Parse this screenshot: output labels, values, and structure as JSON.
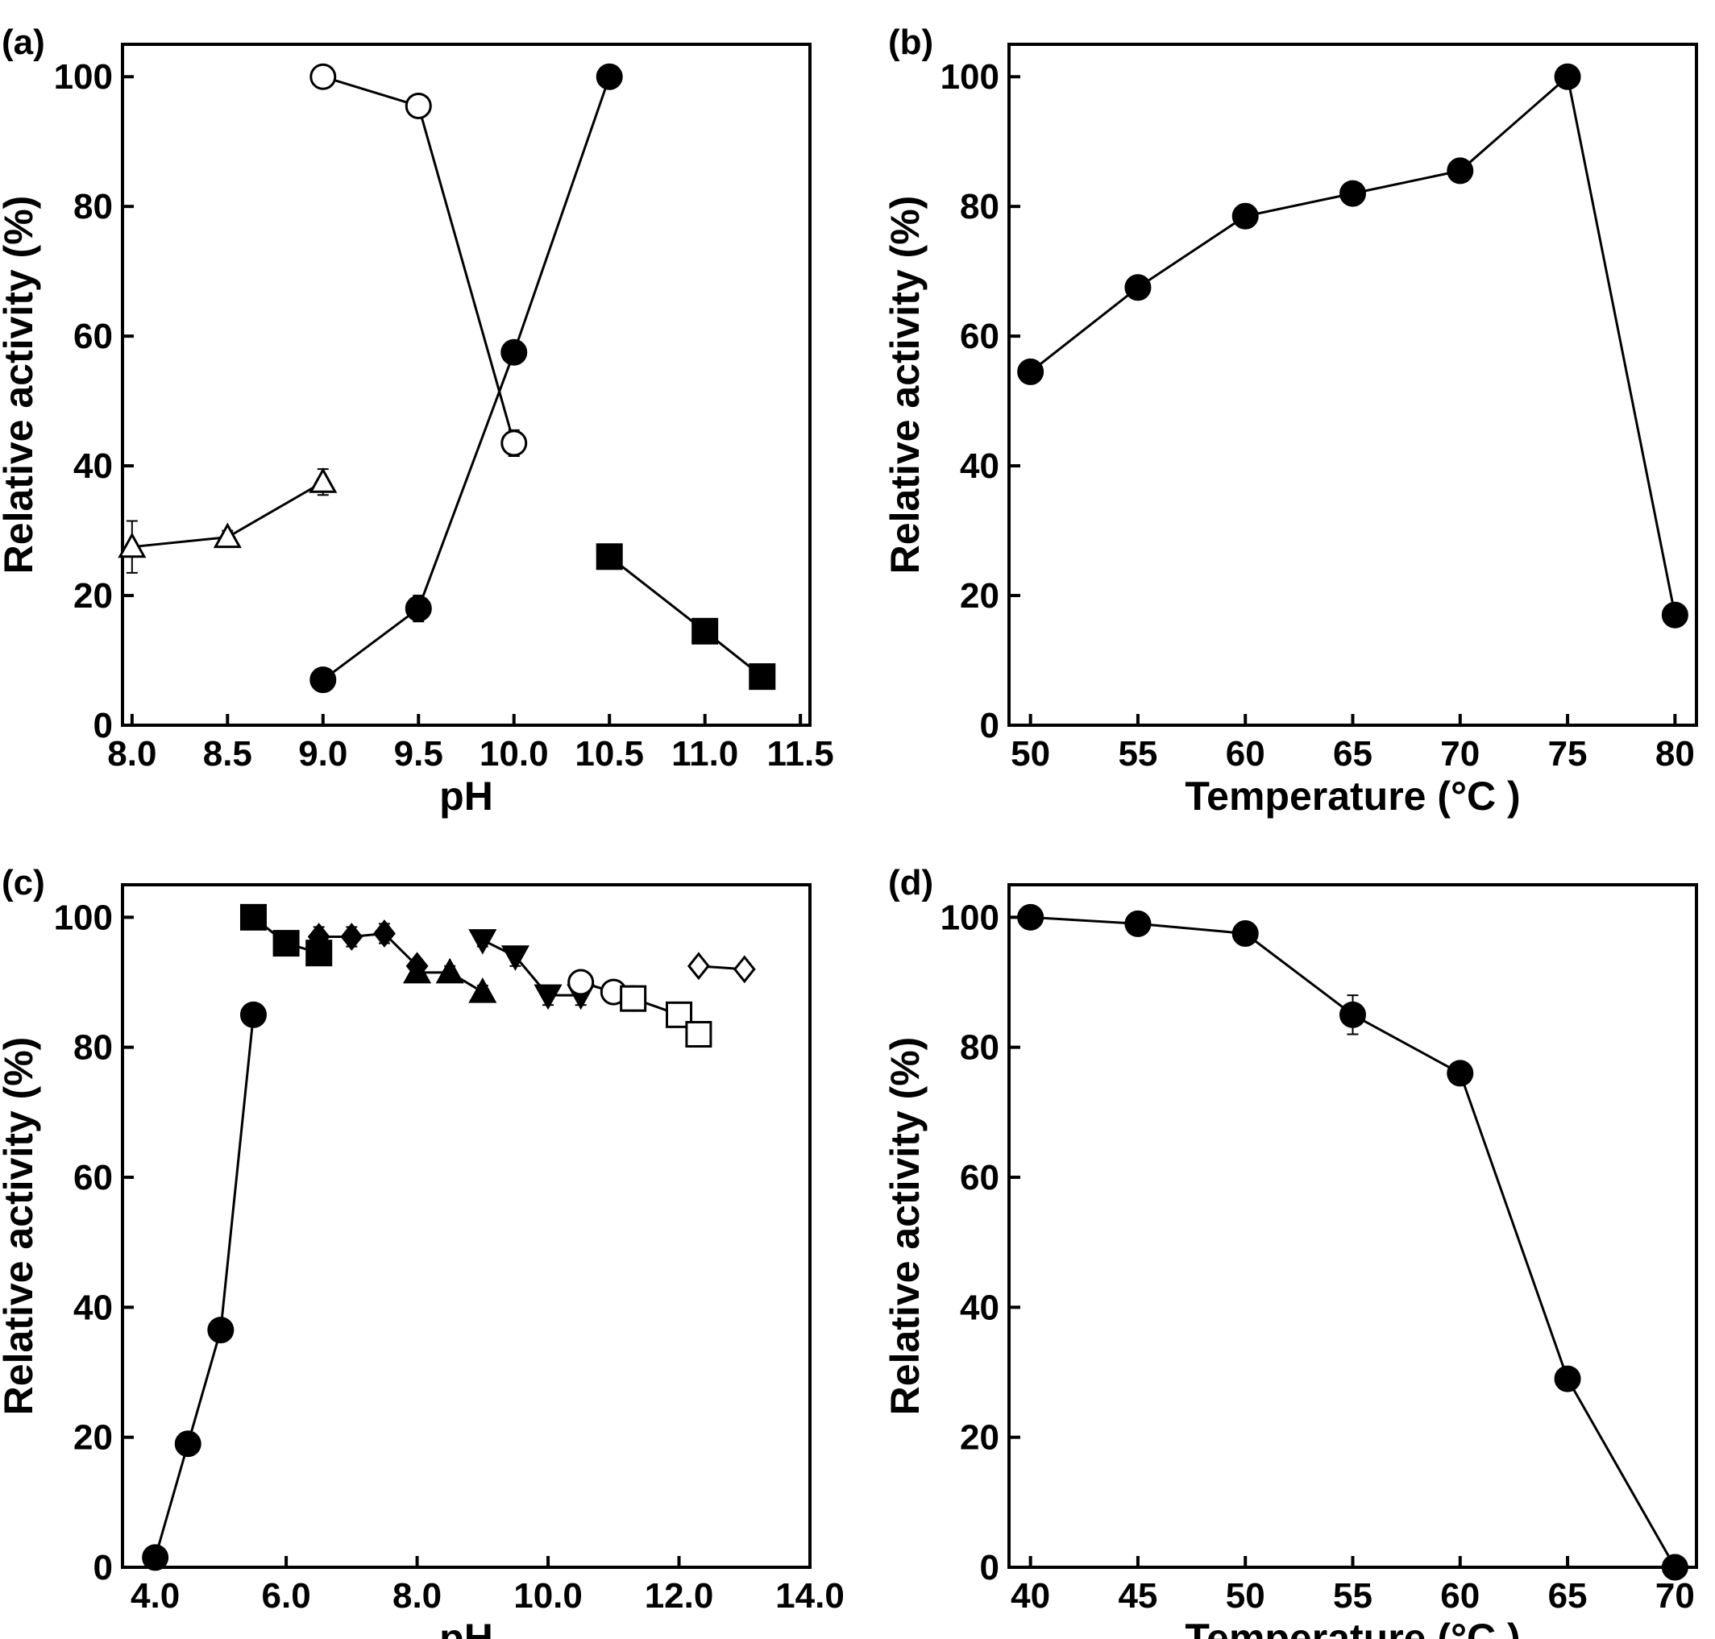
{
  "chart_data": [
    {
      "panel_label": "(a)",
      "type": "line",
      "xlabel": "pH",
      "ylabel": "Relative activity (%)",
      "xlim": [
        7.95,
        11.55
      ],
      "ylim": [
        0,
        105
      ],
      "xticks": [
        8.0,
        8.5,
        9.0,
        9.5,
        10.0,
        10.5,
        11.0,
        11.5
      ],
      "xtick_labels": [
        "8.0",
        "8.5",
        "9.0",
        "9.5",
        "10.0",
        "10.5",
        "11.0",
        "11.5"
      ],
      "yticks": [
        0,
        20,
        40,
        60,
        80,
        100
      ],
      "ytick_labels": [
        "0",
        "20",
        "40",
        "60",
        "80",
        "100"
      ],
      "series": [
        {
          "marker": "triangle-open",
          "x": [
            8.0,
            8.5,
            9.0
          ],
          "y": [
            27.5,
            29,
            37.5
          ],
          "err": [
            4,
            1,
            2
          ]
        },
        {
          "marker": "circle-open",
          "x": [
            9.0,
            9.5,
            10.0
          ],
          "y": [
            100,
            95.5,
            43.5
          ],
          "err": [
            0,
            0,
            2
          ]
        },
        {
          "marker": "circle-filled",
          "x": [
            9.0,
            9.5,
            10.0,
            10.5
          ],
          "y": [
            7,
            18,
            57.5,
            100
          ],
          "err": [
            0,
            2,
            0,
            0
          ]
        },
        {
          "marker": "square-filled",
          "x": [
            10.5,
            11.0,
            11.3
          ],
          "y": [
            26,
            14.5,
            7.5
          ],
          "err": [
            0,
            0,
            0
          ]
        }
      ]
    },
    {
      "panel_label": "(b)",
      "type": "line",
      "xlabel": "Temperature (°C )",
      "ylabel": "Relative activity (%)",
      "xlim": [
        49,
        81
      ],
      "ylim": [
        0,
        105
      ],
      "xticks": [
        50,
        55,
        60,
        65,
        70,
        75,
        80
      ],
      "xtick_labels": [
        "50",
        "55",
        "60",
        "65",
        "70",
        "75",
        "80"
      ],
      "yticks": [
        0,
        20,
        40,
        60,
        80,
        100
      ],
      "ytick_labels": [
        "0",
        "20",
        "40",
        "60",
        "80",
        "100"
      ],
      "series": [
        {
          "marker": "circle-filled",
          "x": [
            50,
            55,
            60,
            65,
            70,
            75,
            80
          ],
          "y": [
            54.5,
            67.5,
            78.5,
            82,
            85.5,
            100,
            17
          ],
          "err": [
            0,
            0,
            0,
            0,
            0,
            0,
            0
          ]
        }
      ]
    },
    {
      "panel_label": "(c)",
      "type": "line",
      "xlabel": "pH",
      "ylabel": "Relative activity (%)",
      "xlim": [
        3.5,
        14.0
      ],
      "ylim": [
        0,
        105
      ],
      "xticks": [
        4.0,
        6.0,
        8.0,
        10.0,
        12.0,
        14.0
      ],
      "xtick_labels": [
        "4.0",
        "6.0",
        "8.0",
        "10.0",
        "12.0",
        "14.0"
      ],
      "yticks": [
        0,
        20,
        40,
        60,
        80,
        100
      ],
      "ytick_labels": [
        "0",
        "20",
        "40",
        "60",
        "80",
        "100"
      ],
      "series": [
        {
          "marker": "circle-filled",
          "x": [
            4.0,
            4.5,
            5.0,
            5.5
          ],
          "y": [
            1.5,
            19,
            36.5,
            85
          ],
          "err": [
            0,
            0,
            0,
            1
          ]
        },
        {
          "marker": "square-filled",
          "x": [
            5.5,
            6.0,
            6.5
          ],
          "y": [
            100,
            96,
            94.5
          ],
          "err": [
            1.5,
            1,
            1.5
          ]
        },
        {
          "marker": "diamond-filled",
          "x": [
            6.5,
            7.0,
            7.5,
            8.0
          ],
          "y": [
            97,
            97,
            97.5,
            92.5
          ],
          "err": [
            1.5,
            1.5,
            1.5,
            1
          ]
        },
        {
          "marker": "triangle-filled",
          "x": [
            8.0,
            8.5,
            9.0
          ],
          "y": [
            91.5,
            91.5,
            88.5
          ],
          "err": [
            1,
            1,
            1
          ]
        },
        {
          "marker": "triangle-down-filled",
          "x": [
            9.0,
            9.5,
            10.0,
            10.5
          ],
          "y": [
            96.5,
            94,
            88,
            88
          ],
          "err": [
            1,
            1.5,
            1.5,
            1.5
          ]
        },
        {
          "marker": "circle-open",
          "x": [
            10.5,
            11.0,
            11.3
          ],
          "y": [
            90,
            88.5,
            87.5
          ],
          "err": [
            1,
            1,
            1.5
          ]
        },
        {
          "marker": "square-open",
          "x": [
            11.3,
            12.0,
            12.3
          ],
          "y": [
            87.5,
            85,
            82
          ],
          "err": [
            1.5,
            0,
            0
          ]
        },
        {
          "marker": "diamond-open",
          "x": [
            12.3,
            13.0
          ],
          "y": [
            92.5,
            92
          ],
          "err": [
            1,
            1
          ]
        }
      ]
    },
    {
      "panel_label": "(d)",
      "type": "line",
      "xlabel": "Temperature (°C )",
      "ylabel": "Relative activity (%)",
      "xlim": [
        39,
        71
      ],
      "ylim": [
        0,
        105
      ],
      "xticks": [
        40,
        45,
        50,
        55,
        60,
        65,
        70
      ],
      "xtick_labels": [
        "40",
        "45",
        "50",
        "55",
        "60",
        "65",
        "70"
      ],
      "yticks": [
        0,
        20,
        40,
        60,
        80,
        100
      ],
      "ytick_labels": [
        "0",
        "20",
        "40",
        "60",
        "80",
        "100"
      ],
      "series": [
        {
          "marker": "circle-filled",
          "x": [
            40,
            45,
            50,
            55,
            60,
            65,
            70
          ],
          "y": [
            100,
            99,
            97.5,
            85,
            76,
            29,
            0
          ],
          "err": [
            0,
            0,
            0,
            3,
            1.5,
            0,
            0
          ]
        }
      ]
    }
  ]
}
